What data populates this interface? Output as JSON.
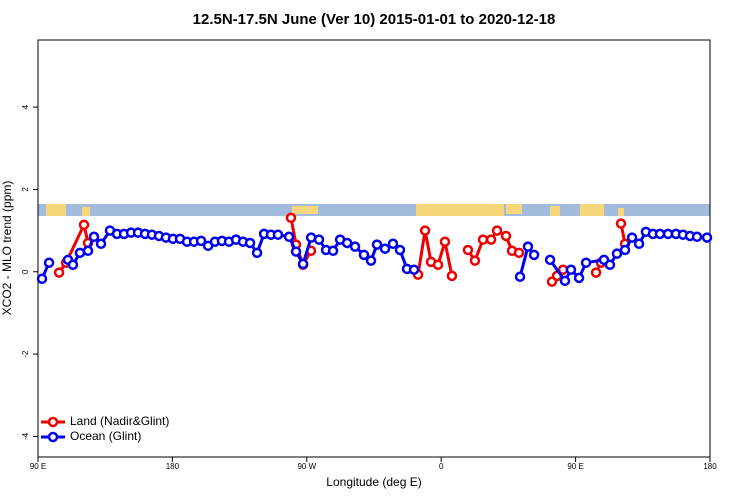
{
  "chart_data": {
    "type": "line",
    "title": "12.5N-17.5N June (Ver 10)   2015-01-01 to 2020-12-18",
    "xlabel": "Longitude (deg E)",
    "ylabel": "XCO2 - MLO trend (ppm)",
    "xlim": [
      90,
      540
    ],
    "ylim": [
      -4.5,
      5.63
    ],
    "xticks": [
      {
        "value": 90,
        "label": "90 E"
      },
      180,
      {
        "value": 270,
        "label": "90 W"
      },
      {
        "value": 360,
        "label": "0"
      },
      {
        "value": 450,
        "label": "90 E"
      },
      {
        "value": 540,
        "label": "180"
      }
    ],
    "yticks": [
      -4,
      -2,
      0,
      2,
      4
    ],
    "legend": "bottom-left",
    "series": [
      {
        "name": "Land (Nadir&Glint)",
        "color": "#ee0000",
        "x": [
          104.1,
          108.8,
          120.8,
          123.5,
          null,
          259.4,
          262.8,
          267.5,
          272.8,
          null,
          344.5,
          349.2,
          353.2,
          357.9,
          362.5,
          367.2,
          null,
          377.9,
          382.6,
          388,
          393.4,
          397.4,
          403.4,
          407.4,
          412.1,
          null,
          434.2,
          437.6,
          441.6,
          null,
          463.7,
          467,
          null,
          480.4,
          483.1
        ],
        "values": [
          -0.02,
          0.22,
          1.14,
          0.7,
          null,
          1.31,
          0.66,
          0.17,
          0.51,
          null,
          -0.07,
          1.0,
          0.24,
          0.17,
          0.73,
          -0.1,
          null,
          0.53,
          0.27,
          0.78,
          0.78,
          1.0,
          0.87,
          0.51,
          0.46,
          null,
          -0.24,
          -0.1,
          0.05,
          null,
          -0.02,
          0.22,
          null,
          1.17,
          0.68
        ]
      },
      {
        "name": "Ocean (Glint)",
        "color": "#0000ee",
        "x": [
          92.7,
          97.4,
          null,
          110.1,
          113.4,
          118.1,
          123.5,
          127.5,
          132.2,
          138.2,
          142.9,
          147.6,
          152.3,
          157,
          161.7,
          166.3,
          171,
          175.7,
          180.4,
          185.1,
          189.8,
          194.5,
          199.2,
          203.9,
          208.5,
          213.2,
          217.9,
          222.6,
          227.3,
          232,
          236.7,
          241.4,
          246,
          250.7,
          258.1,
          262.8,
          267.5,
          272.9,
          278.2,
          282.9,
          287.6,
          292.3,
          297,
          302.3,
          308.3,
          313,
          317,
          322.4,
          327.7,
          332.4,
          337.1,
          341.8,
          null,
          412.8,
          418.1,
          422.2,
          null,
          432.9,
          442.9,
          446.9,
          452.3,
          457,
          469,
          473,
          477.7,
          483.1,
          487.8,
          492.5,
          497.1,
          501.8,
          506.5,
          511.9,
          517.2,
          521.9,
          526.6,
          531.3,
          538
        ],
        "values": [
          -0.17,
          0.22,
          null,
          0.29,
          0.17,
          0.46,
          0.51,
          0.85,
          0.68,
          1.0,
          0.92,
          0.92,
          0.95,
          0.95,
          0.92,
          0.9,
          0.87,
          0.83,
          0.8,
          0.8,
          0.73,
          0.73,
          0.75,
          0.63,
          0.73,
          0.75,
          0.73,
          0.78,
          0.73,
          0.7,
          0.46,
          0.92,
          0.9,
          0.9,
          0.85,
          0.49,
          0.19,
          0.83,
          0.78,
          0.53,
          0.51,
          0.78,
          0.7,
          0.61,
          0.41,
          0.27,
          0.66,
          0.56,
          0.68,
          0.53,
          0.07,
          0.05,
          null,
          -0.12,
          0.61,
          0.41,
          null,
          0.29,
          -0.22,
          0.05,
          -0.15,
          0.22,
          0.29,
          0.17,
          0.44,
          0.53,
          0.83,
          0.68,
          0.97,
          0.92,
          0.92,
          0.92,
          0.92,
          0.9,
          0.87,
          0.85,
          0.83
        ]
      }
    ]
  }
}
